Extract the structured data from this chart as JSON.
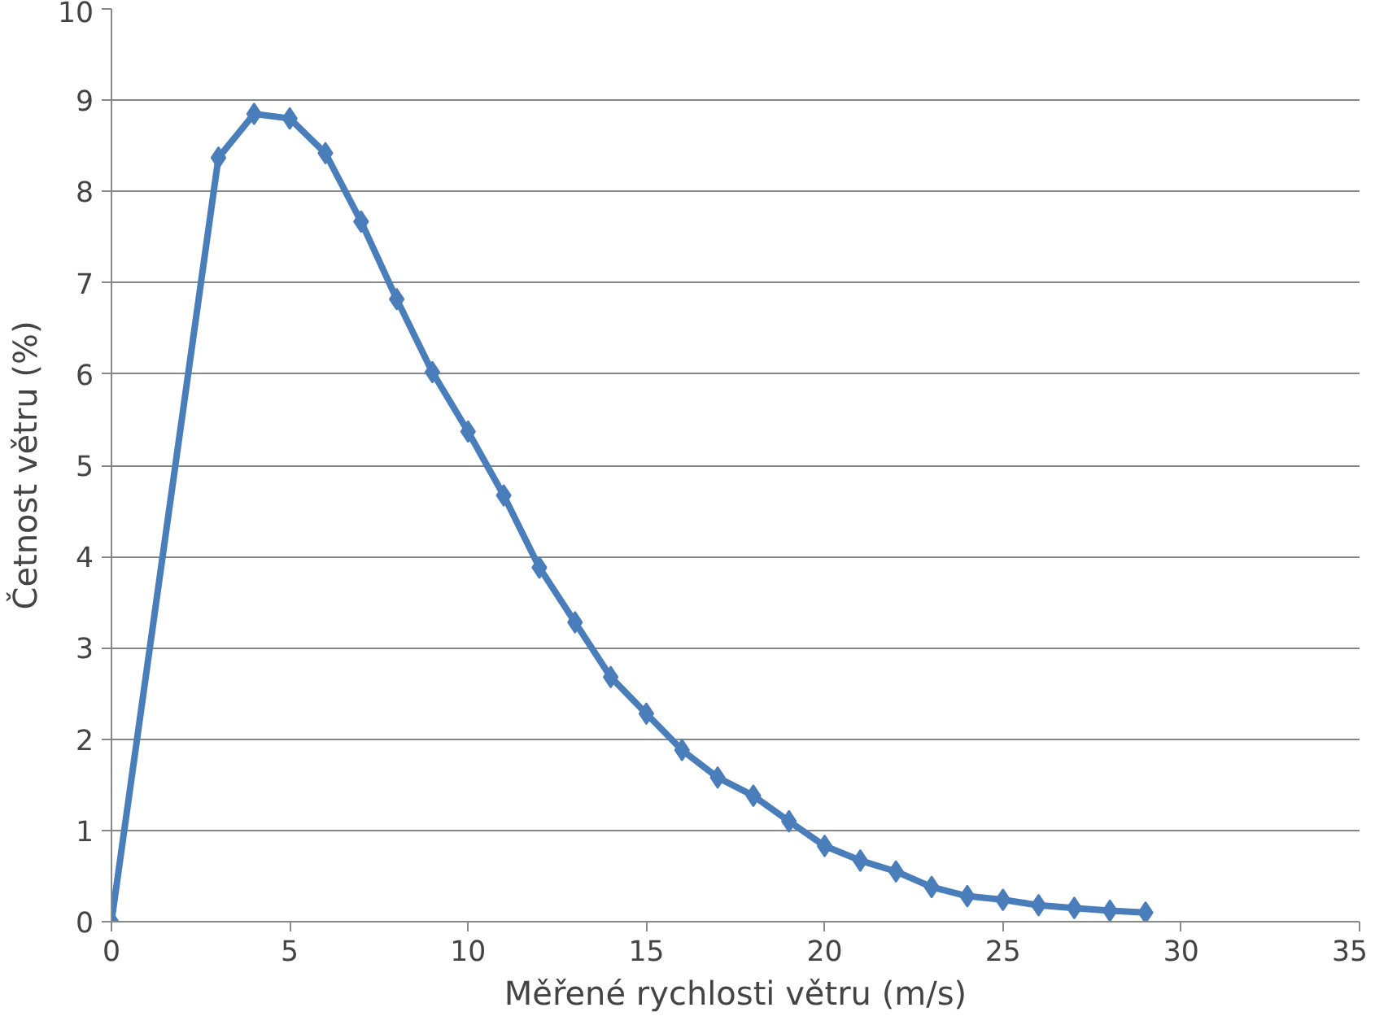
{
  "chart_data": {
    "type": "line",
    "xlabel": "Měřené rychlosti větru (m/s)",
    "ylabel": "Četnost větru (%)",
    "x": [
      0,
      3,
      4,
      5,
      6,
      7,
      8,
      9,
      10,
      11,
      12,
      13,
      14,
      15,
      16,
      17,
      18,
      19,
      20,
      21,
      22,
      23,
      24,
      25,
      26,
      27,
      28,
      29
    ],
    "series": [
      {
        "color": "#4a7ebb",
        "values": [
          0,
          8.37,
          8.85,
          8.8,
          8.42,
          7.67,
          6.82,
          6.02,
          5.37,
          4.67,
          3.88,
          3.28,
          2.68,
          2.28,
          1.88,
          1.58,
          1.38,
          1.1,
          0.83,
          0.67,
          0.55,
          0.38,
          0.28,
          0.24,
          0.18,
          0.15,
          0.12,
          0.1
        ]
      }
    ],
    "xlim": [
      0,
      35
    ],
    "xticks": [
      0,
      5,
      10,
      15,
      20,
      25,
      30,
      35
    ],
    "ylim": [
      0,
      10
    ],
    "yticks": [
      0,
      1,
      2,
      3,
      4,
      5,
      6,
      7,
      8,
      9,
      10
    ],
    "grid": "y",
    "marker": "diamond",
    "line_style": "solid"
  }
}
